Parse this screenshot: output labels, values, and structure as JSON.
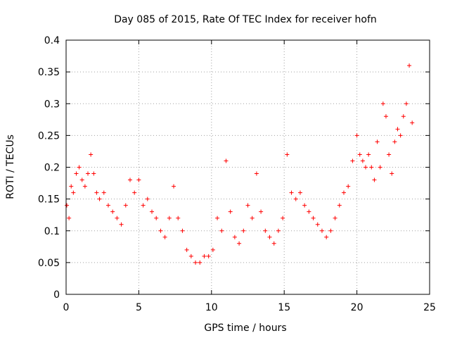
{
  "chart_data": {
    "type": "scatter",
    "title": "Day 085 of 2015, Rate Of TEC Index for receiver hofn",
    "xlabel": "GPS time / hours",
    "ylabel": "ROTI / TECUs",
    "xlim": [
      0,
      25
    ],
    "ylim": [
      0,
      0.4
    ],
    "x_ticks": [
      "0",
      "5",
      "10",
      "15",
      "20",
      "25"
    ],
    "y_ticks": [
      "0",
      "0.05",
      "0.1",
      "0.15",
      "0.2",
      "0.25",
      "0.3",
      "0.35",
      "0.4"
    ],
    "grid": true,
    "marker": "+",
    "color": "#ff0000",
    "series": [
      {
        "x": [
          0.05,
          0.2,
          0.35,
          0.5,
          0.7,
          0.9,
          1.1,
          1.3,
          1.5,
          1.7,
          1.9,
          2.1,
          2.3,
          2.6,
          2.9,
          3.2,
          3.5,
          3.8,
          4.1,
          4.4,
          4.7,
          5.0,
          5.3,
          5.6,
          5.9,
          6.2,
          6.5,
          6.8,
          7.1,
          7.4,
          7.7,
          8.0,
          8.3,
          8.6,
          8.9,
          9.2,
          9.5,
          9.8,
          10.1,
          10.4,
          10.7,
          11.0,
          11.3,
          11.6,
          11.9,
          12.2,
          12.5,
          12.8,
          13.1,
          13.4,
          13.7,
          14.0,
          14.3,
          14.6,
          14.9,
          15.2,
          15.5,
          15.8,
          16.1,
          16.4,
          16.7,
          17.0,
          17.3,
          17.6,
          17.9,
          18.2,
          18.5,
          18.8,
          19.1,
          19.4,
          19.7,
          20.0,
          20.2,
          20.4,
          20.6,
          20.8,
          21.0,
          21.2,
          21.4,
          21.6,
          21.8,
          22.0,
          22.2,
          22.4,
          22.6,
          22.8,
          23.0,
          23.2,
          23.4,
          23.6,
          23.8
        ],
        "y": [
          0.14,
          0.12,
          0.17,
          0.16,
          0.19,
          0.2,
          0.18,
          0.17,
          0.19,
          0.22,
          0.19,
          0.16,
          0.15,
          0.16,
          0.14,
          0.13,
          0.12,
          0.11,
          0.14,
          0.18,
          0.16,
          0.18,
          0.14,
          0.15,
          0.13,
          0.12,
          0.1,
          0.09,
          0.12,
          0.17,
          0.12,
          0.1,
          0.07,
          0.06,
          0.05,
          0.05,
          0.06,
          0.06,
          0.07,
          0.12,
          0.1,
          0.21,
          0.13,
          0.09,
          0.08,
          0.1,
          0.14,
          0.12,
          0.19,
          0.13,
          0.1,
          0.09,
          0.08,
          0.1,
          0.12,
          0.22,
          0.16,
          0.15,
          0.16,
          0.14,
          0.13,
          0.12,
          0.11,
          0.1,
          0.09,
          0.1,
          0.12,
          0.14,
          0.16,
          0.17,
          0.21,
          0.25,
          0.22,
          0.21,
          0.2,
          0.22,
          0.2,
          0.18,
          0.24,
          0.2,
          0.3,
          0.28,
          0.22,
          0.19,
          0.24,
          0.26,
          0.25,
          0.28,
          0.3,
          0.36,
          0.27
        ]
      }
    ]
  }
}
